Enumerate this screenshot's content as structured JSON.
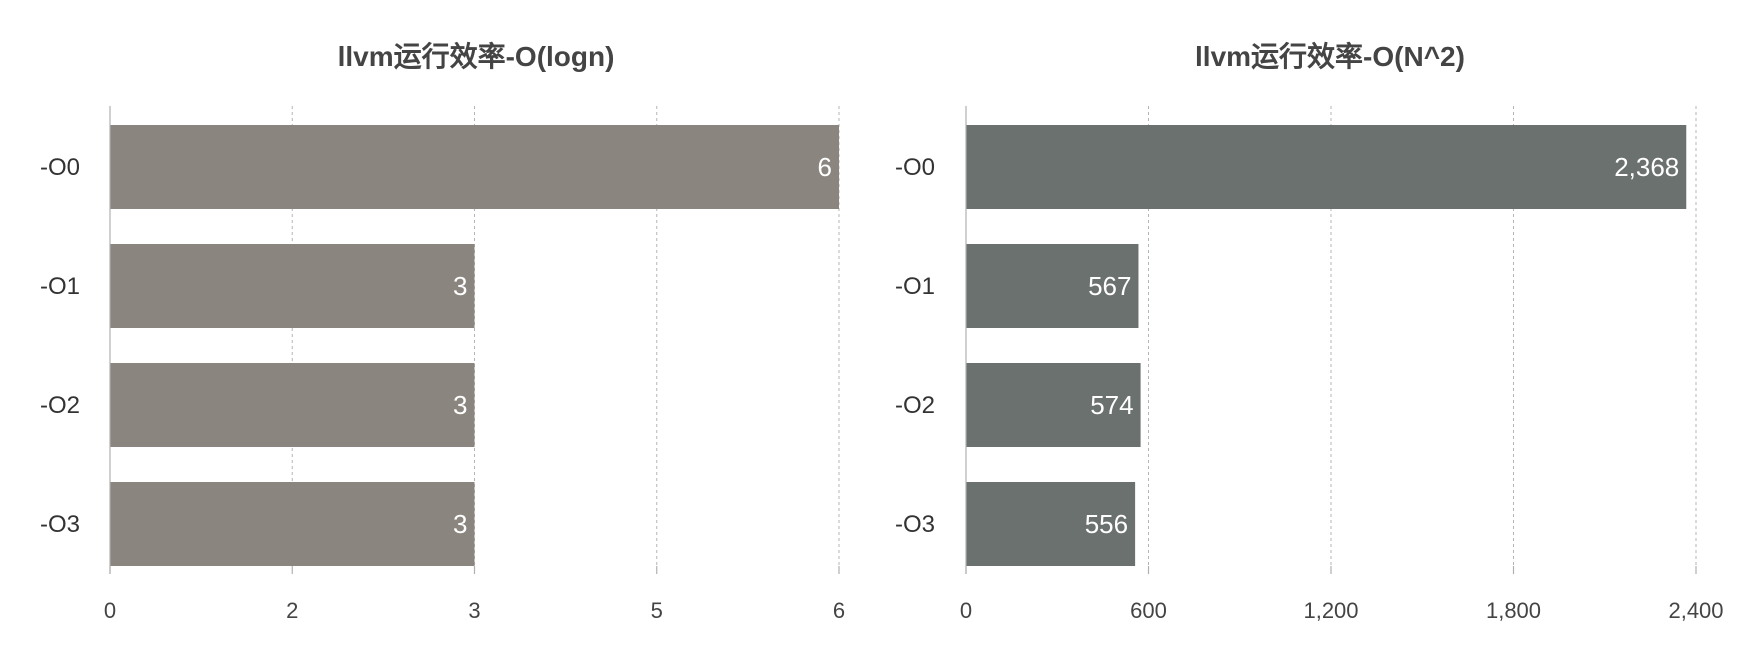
{
  "chart_data": [
    {
      "type": "bar",
      "orientation": "horizontal",
      "title": "llvm运行效率-O(logn)",
      "categories": [
        "-O0",
        "-O1",
        "-O2",
        "-O3"
      ],
      "values": [
        6,
        3,
        3,
        3
      ],
      "value_labels": [
        "6",
        "3",
        "3",
        "3"
      ],
      "x_ticks": [
        0,
        1.5,
        3,
        4.5,
        6
      ],
      "x_tick_labels": [
        "0",
        "2",
        "3",
        "5",
        "6"
      ],
      "xlim": [
        0,
        6
      ],
      "grid": true,
      "color": "#8a857f"
    },
    {
      "type": "bar",
      "orientation": "horizontal",
      "title": "llvm运行效率-O(N^2)",
      "categories": [
        "-O0",
        "-O1",
        "-O2",
        "-O3"
      ],
      "values": [
        2368,
        567,
        574,
        556
      ],
      "value_labels": [
        "2,368",
        "567",
        "574",
        "556"
      ],
      "x_ticks": [
        0,
        600,
        1200,
        1800,
        2400
      ],
      "x_tick_labels": [
        "0",
        "600",
        "1,200",
        "1,800",
        "2,400"
      ],
      "xlim": [
        0,
        2400
      ],
      "grid": true,
      "color": "#6b716f"
    }
  ]
}
